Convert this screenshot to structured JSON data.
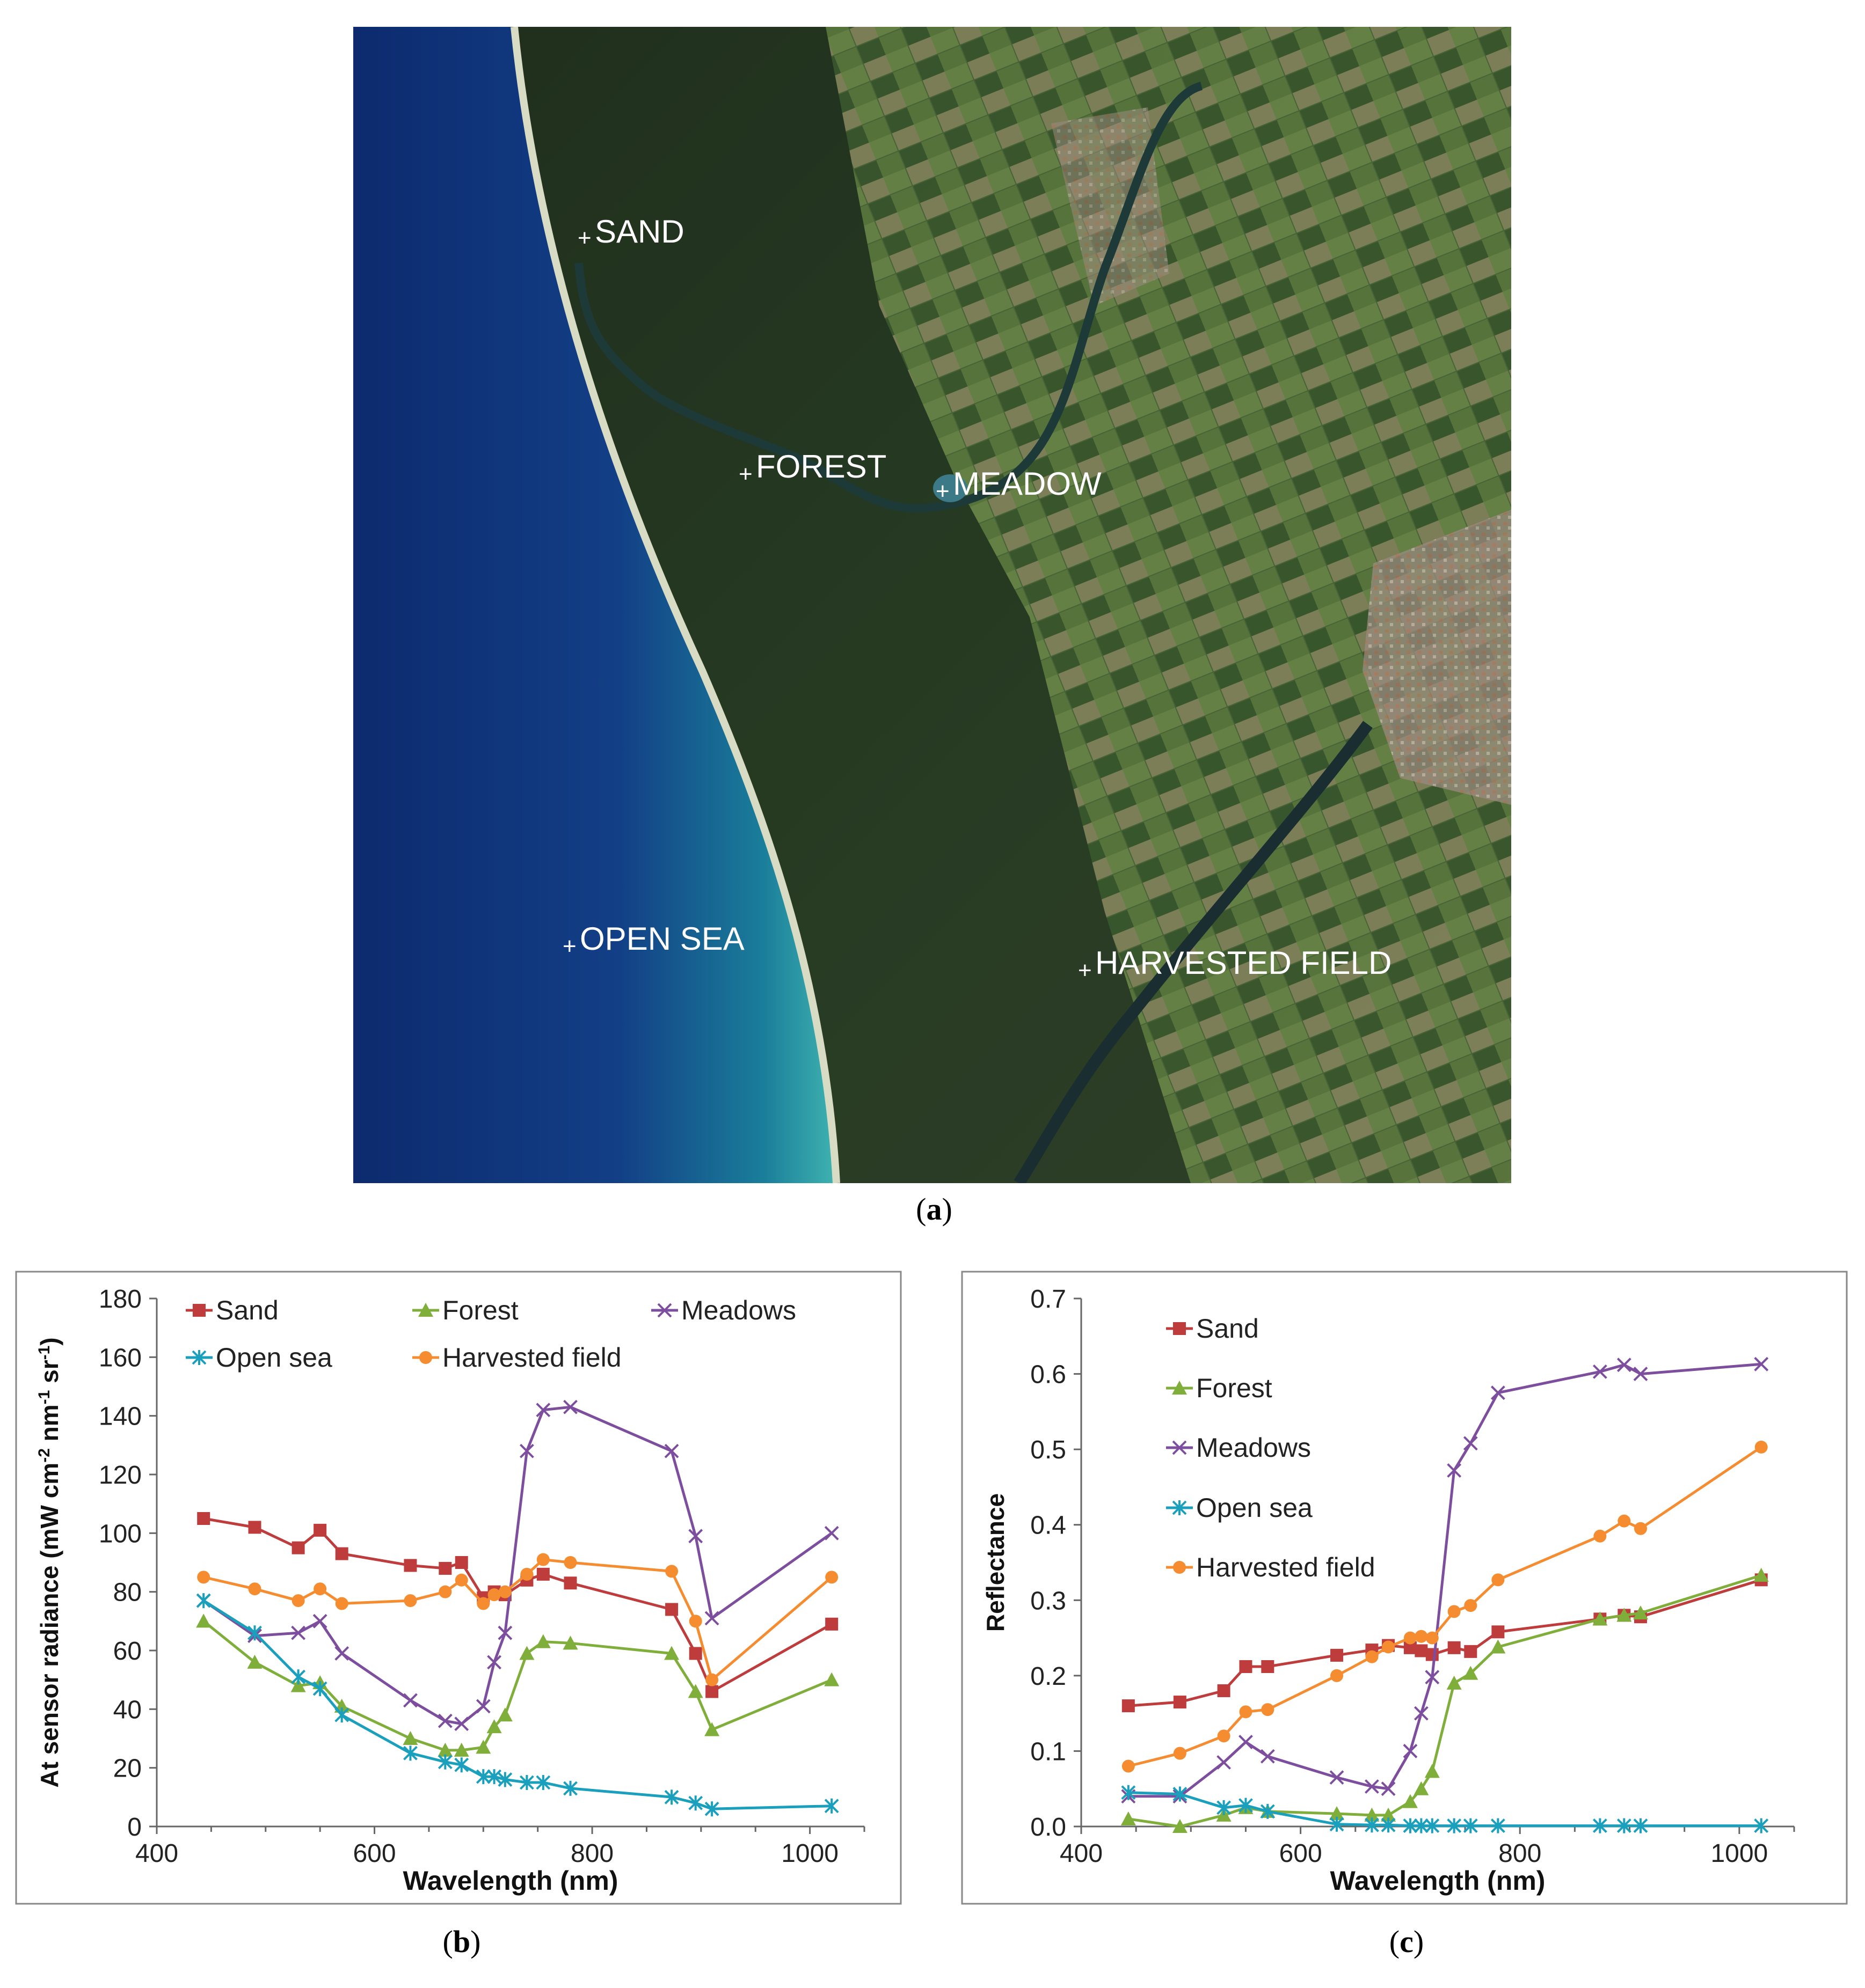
{
  "colors": {
    "sand": "#be3c3c",
    "forest": "#7fae3a",
    "meadows": "#7d4e9e",
    "open_sea": "#1aa0bd",
    "harvested": "#f58c30"
  },
  "panel_a": {
    "caption_open": "(",
    "caption_letter": "a",
    "caption_close": ")",
    "labels": {
      "sand": "SAND",
      "forest": "FOREST",
      "meadow": "MEADOW",
      "open_sea": "OPEN SEA",
      "harvested": "HARVESTED FIELD"
    }
  },
  "panel_b": {
    "caption_open": "(",
    "caption_letter": "b",
    "caption_close": ")"
  },
  "panel_c": {
    "caption_open": "(",
    "caption_letter": "c",
    "caption_close": ")"
  },
  "chart_data": [
    {
      "id": "b",
      "type": "line",
      "title": "",
      "xlabel": "Wavelength (nm)",
      "ylabel_parts": [
        "At sensor radiance (mW cm",
        "-2",
        " nm",
        "-1",
        " sr",
        "-1",
        ")"
      ],
      "xlim": [
        400,
        1050
      ],
      "ylim": [
        0,
        180
      ],
      "xticks": [
        400,
        600,
        800,
        1000
      ],
      "yticks": [
        0,
        20,
        40,
        60,
        80,
        100,
        120,
        140,
        160,
        180
      ],
      "ytick_decimals": 0,
      "grid": false,
      "legend_position": "top",
      "series": [
        {
          "name": "Sand",
          "key": "sand",
          "marker": "square",
          "x": [
            443,
            490,
            530,
            550,
            570,
            633,
            665,
            680,
            700,
            710,
            720,
            740,
            755,
            780,
            873,
            895,
            910,
            1020
          ],
          "y": [
            105,
            102,
            95,
            101,
            93,
            89,
            88,
            90,
            78,
            80,
            79,
            84,
            86,
            83,
            74,
            59,
            46,
            69
          ]
        },
        {
          "name": "Forest",
          "key": "forest",
          "marker": "triangle",
          "x": [
            443,
            490,
            530,
            550,
            570,
            633,
            665,
            680,
            700,
            710,
            720,
            740,
            755,
            780,
            873,
            895,
            910,
            1020
          ],
          "y": [
            70,
            56,
            48,
            49,
            41,
            30,
            26,
            26,
            27,
            34,
            38,
            59,
            63,
            62.5,
            59,
            46,
            33,
            50
          ]
        },
        {
          "name": "Meadows",
          "key": "meadows",
          "marker": "x",
          "x": [
            443,
            490,
            530,
            550,
            570,
            633,
            665,
            680,
            700,
            710,
            720,
            740,
            755,
            780,
            873,
            895,
            910,
            1020
          ],
          "y": [
            77,
            65,
            66,
            70,
            59,
            43,
            36,
            35,
            41,
            56,
            66,
            128,
            142,
            143,
            128,
            99,
            71,
            100
          ]
        },
        {
          "name": "Open sea",
          "key": "open_sea",
          "marker": "star",
          "x": [
            443,
            490,
            530,
            550,
            570,
            633,
            665,
            680,
            700,
            710,
            720,
            740,
            755,
            780,
            873,
            895,
            910,
            1020
          ],
          "y": [
            77,
            66,
            51,
            47,
            38,
            25,
            22,
            21,
            17,
            17,
            16,
            15,
            15,
            13,
            10,
            8,
            6,
            7
          ]
        },
        {
          "name": "Harvested field",
          "key": "harvested",
          "marker": "circle",
          "x": [
            443,
            490,
            530,
            550,
            570,
            633,
            665,
            680,
            700,
            710,
            720,
            740,
            755,
            780,
            873,
            895,
            910,
            1020
          ],
          "y": [
            85,
            81,
            77,
            81,
            76,
            77,
            80,
            84,
            76,
            79,
            80,
            86,
            91,
            90,
            87,
            70,
            50,
            85
          ]
        }
      ]
    },
    {
      "id": "c",
      "type": "line",
      "title": "",
      "xlabel": "Wavelength (nm)",
      "ylabel_parts": [
        "Reflectance"
      ],
      "xlim": [
        400,
        1050
      ],
      "ylim": [
        0,
        0.7
      ],
      "xticks": [
        400,
        600,
        800,
        1000
      ],
      "yticks": [
        0,
        0.1,
        0.2,
        0.3,
        0.4,
        0.5,
        0.6,
        0.7
      ],
      "ytick_decimals": 1,
      "grid": false,
      "legend_position": "top-left",
      "series": [
        {
          "name": "Sand",
          "key": "sand",
          "marker": "square",
          "x": [
            443,
            490,
            530,
            550,
            570,
            633,
            665,
            680,
            700,
            710,
            720,
            740,
            755,
            780,
            873,
            895,
            910,
            1020
          ],
          "y": [
            0.16,
            0.165,
            0.18,
            0.212,
            0.212,
            0.227,
            0.234,
            0.24,
            0.237,
            0.233,
            0.228,
            0.237,
            0.232,
            0.258,
            0.275,
            0.28,
            0.278,
            0.327
          ]
        },
        {
          "name": "Forest",
          "key": "forest",
          "marker": "triangle",
          "x": [
            443,
            490,
            530,
            550,
            570,
            633,
            665,
            680,
            700,
            710,
            720,
            740,
            755,
            780,
            873,
            895,
            910,
            1020
          ],
          "y": [
            0.01,
            0.0,
            0.015,
            0.025,
            0.02,
            0.017,
            0.015,
            0.015,
            0.033,
            0.05,
            0.073,
            0.19,
            0.203,
            0.238,
            0.275,
            0.28,
            0.283,
            0.333
          ]
        },
        {
          "name": "Meadows",
          "key": "meadows",
          "marker": "x",
          "x": [
            443,
            490,
            530,
            550,
            570,
            633,
            665,
            680,
            700,
            710,
            720,
            740,
            755,
            780,
            873,
            895,
            910,
            1020
          ],
          "y": [
            0.04,
            0.04,
            0.085,
            0.112,
            0.093,
            0.065,
            0.053,
            0.05,
            0.1,
            0.15,
            0.198,
            0.472,
            0.508,
            0.575,
            0.603,
            0.612,
            0.6,
            0.613
          ]
        },
        {
          "name": "Open sea",
          "key": "open_sea",
          "marker": "star",
          "x": [
            443,
            490,
            530,
            550,
            570,
            633,
            665,
            680,
            700,
            710,
            720,
            740,
            755,
            780,
            873,
            895,
            910,
            1020
          ],
          "y": [
            0.045,
            0.043,
            0.025,
            0.028,
            0.02,
            0.003,
            0.002,
            0.002,
            0.001,
            0.001,
            0.001,
            0.001,
            0.001,
            0.001,
            0.001,
            0.001,
            0.001,
            0.001
          ]
        },
        {
          "name": "Harvested field",
          "key": "harvested",
          "marker": "circle",
          "x": [
            443,
            490,
            530,
            550,
            570,
            633,
            665,
            680,
            700,
            710,
            720,
            740,
            755,
            780,
            873,
            895,
            910,
            1020
          ],
          "y": [
            0.08,
            0.097,
            0.12,
            0.152,
            0.155,
            0.2,
            0.225,
            0.238,
            0.25,
            0.252,
            0.25,
            0.285,
            0.293,
            0.327,
            0.385,
            0.405,
            0.395,
            0.503
          ]
        }
      ]
    }
  ]
}
